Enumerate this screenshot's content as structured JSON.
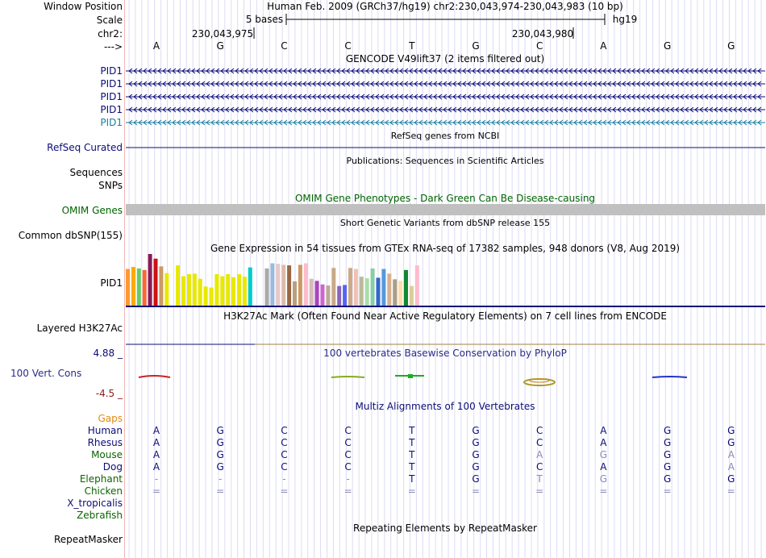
{
  "ruler": {
    "window_position_label": "Window Position",
    "window_position_text": "Human Feb. 2009 (GRCh37/hg19)   chr2:230,043,974-230,043,983 (10 bp)",
    "scale_label": "Scale",
    "scale_text": "5 bases",
    "scale_assembly": "hg19",
    "chr_label": "chr2:",
    "pos_left": "230,043,975",
    "pos_right": "230,043,980",
    "strand_label": "--->",
    "bases": [
      "A",
      "G",
      "C",
      "C",
      "T",
      "G",
      "C",
      "A",
      "G",
      "G"
    ]
  },
  "tracks": {
    "gencode": {
      "title": "GENCODE V49lift37 (2 items filtered out)",
      "rows": [
        {
          "label": "PID1",
          "color": "#0c0c78"
        },
        {
          "label": "PID1",
          "color": "#0c0c78"
        },
        {
          "label": "PID1",
          "color": "#0c0c78"
        },
        {
          "label": "PID1",
          "color": "#0c0c78"
        },
        {
          "label": "PID1",
          "color": "#1a7ea0"
        }
      ]
    },
    "refseq": {
      "title": "RefSeq genes from NCBI",
      "label": "RefSeq Curated",
      "color": "#0c0c78"
    },
    "publications": {
      "title": "Publications: Sequences in Scientific Articles",
      "label": "Sequences"
    },
    "snps": {
      "label": "SNPs"
    },
    "omim": {
      "title": "OMIM Gene Phenotypes - Dark Green Can Be Disease-causing",
      "label": "OMIM Genes",
      "color": "#006400"
    },
    "dbsnp": {
      "title": "Short Genetic Variants from dbSNP release 155",
      "label": "Common dbSNP(155)"
    },
    "gtex": {
      "title": "Gene Expression in 54 tissues from GTEx RNA-seq of 17382 samples, 948 donors (V8, Aug 2019)",
      "label": "PID1"
    },
    "h3k27ac": {
      "title": "H3K27Ac Mark (Often Found Near Active Regulatory Elements) on 7 cell lines from ENCODE",
      "label": "Layered H3K27Ac"
    },
    "phylop": {
      "title": "100 vertebrates Basewise Conservation by PhyloP",
      "label": "100 Vert. Cons",
      "max": "4.88 _",
      "min": "-4.5 _"
    },
    "multiz": {
      "title": "Multiz Alignments of 100 Vertebrates",
      "gaps_label": "Gaps",
      "species": [
        {
          "name": "Human",
          "color": "#0c0c78",
          "bases": [
            "A",
            "G",
            "C",
            "C",
            "T",
            "G",
            "C",
            "A",
            "G",
            "G"
          ],
          "faint": []
        },
        {
          "name": "Rhesus",
          "color": "#0c0c78",
          "bases": [
            "A",
            "G",
            "C",
            "C",
            "T",
            "G",
            "C",
            "A",
            "G",
            "G"
          ],
          "faint": []
        },
        {
          "name": "Mouse",
          "color": "#0c6400",
          "bases": [
            "A",
            "G",
            "C",
            "C",
            "T",
            "G",
            "A",
            "G",
            "G",
            "A"
          ],
          "faint": [
            6,
            7,
            9
          ]
        },
        {
          "name": "Dog",
          "color": "#0c0c78",
          "bases": [
            "A",
            "G",
            "C",
            "C",
            "T",
            "G",
            "C",
            "A",
            "G",
            "A"
          ],
          "faint": [
            9
          ]
        },
        {
          "name": "Elephant",
          "color": "#0c6400",
          "bases": [
            "-",
            "-",
            "-",
            "-",
            "T",
            "G",
            "T",
            "G",
            "G",
            "G"
          ],
          "faint": [
            0,
            1,
            2,
            3,
            6,
            7
          ]
        },
        {
          "name": "Chicken",
          "color": "#0c6400",
          "bases": [
            "=",
            "=",
            "=",
            "=",
            "=",
            "=",
            "=",
            "=",
            "=",
            "="
          ],
          "faint": [
            0,
            1,
            2,
            3,
            4,
            5,
            6,
            7,
            8,
            9
          ]
        },
        {
          "name": "X_tropicalis",
          "color": "#0c0c78",
          "bases": [],
          "faint": []
        },
        {
          "name": "Zebrafish",
          "color": "#0c6400",
          "bases": [],
          "faint": []
        }
      ]
    },
    "repeatmasker": {
      "title": "Repeating Elements by RepeatMasker",
      "label": "RepeatMasker"
    }
  },
  "chart_data": {
    "type": "bar",
    "title": "Gene Expression in 54 tissues from GTEx RNA-seq of 17382 samples, 948 donors (V8, Aug 2019)",
    "ylim": [
      0,
      100
    ],
    "values": [
      71,
      75,
      72,
      69,
      100,
      91,
      76,
      63,
      0,
      78,
      57,
      61,
      62,
      52,
      37,
      35,
      61,
      57,
      61,
      55,
      61,
      56,
      74,
      0,
      0,
      72,
      82,
      81,
      79,
      78,
      47,
      79,
      82,
      52,
      48,
      41,
      39,
      73,
      38,
      40,
      73,
      71,
      56,
      53,
      72,
      54,
      71,
      62,
      51,
      48,
      69,
      38,
      78,
      0
    ],
    "colors": [
      "#ff9933",
      "#ffaa00",
      "#66cc66",
      "#ff6633",
      "#8b1a5a",
      "#cc1111",
      "#cc9966",
      "#e8e800",
      "#ffffff",
      "#e8e800",
      "#e8e800",
      "#e8e800",
      "#e8e800",
      "#e8e800",
      "#e8e800",
      "#e8e800",
      "#e8e800",
      "#e8e800",
      "#e8e800",
      "#e8e800",
      "#e8e800",
      "#e8e800",
      "#00cccc",
      "#ffffff",
      "#ffffff",
      "#aaaaaa",
      "#99bbdd",
      "#e8c8c8",
      "#ddbbaa",
      "#996644",
      "#b8a080",
      "#cc9966",
      "#ffbbcc",
      "#d8b8b8",
      "#aa44bb",
      "#cc66cc",
      "#bbaa99",
      "#c8aa88",
      "#8866bb",
      "#5566ee",
      "#ccaa88",
      "#f0c0b0",
      "#bbbb99",
      "#aaddaa",
      "#88ccaa",
      "#3366cc",
      "#5599dd",
      "#d8b090",
      "#aaa088",
      "#ffddaa",
      "#118833",
      "#ddcc99",
      "#ffbbcc",
      "#ee33ee"
    ]
  }
}
